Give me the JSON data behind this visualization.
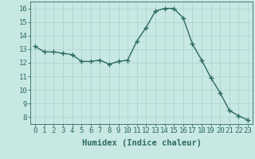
{
  "x": [
    0,
    1,
    2,
    3,
    4,
    5,
    6,
    7,
    8,
    9,
    10,
    11,
    12,
    13,
    14,
    15,
    16,
    17,
    18,
    19,
    20,
    21,
    22,
    23
  ],
  "y": [
    13.2,
    12.8,
    12.8,
    12.7,
    12.6,
    12.1,
    12.1,
    12.2,
    11.9,
    12.1,
    12.2,
    13.6,
    14.6,
    15.8,
    16.0,
    16.0,
    15.3,
    13.4,
    12.2,
    10.9,
    9.8,
    8.5,
    8.1,
    7.8
  ],
  "line_color": "#2d6b5e",
  "marker": "+",
  "marker_size": 4,
  "bg_color": "#c8e8e4",
  "grid_color": "#b0d4cf",
  "xlabel": "Humidex (Indice chaleur)",
  "xlabel_fontsize": 7.5,
  "ylabel_ticks": [
    8,
    9,
    10,
    11,
    12,
    13,
    14,
    15,
    16
  ],
  "xtick_labels": [
    "0",
    "1",
    "2",
    "3",
    "4",
    "5",
    "6",
    "7",
    "8",
    "9",
    "10",
    "11",
    "12",
    "13",
    "14",
    "15",
    "16",
    "17",
    "18",
    "19",
    "20",
    "21",
    "22",
    "23"
  ],
  "ylim": [
    7.5,
    16.5
  ],
  "xlim": [
    -0.5,
    23.5
  ],
  "tick_color": "#2d6b5e",
  "tick_fontsize": 6.5,
  "line_width": 1.0,
  "markeredgewidth": 1.0
}
